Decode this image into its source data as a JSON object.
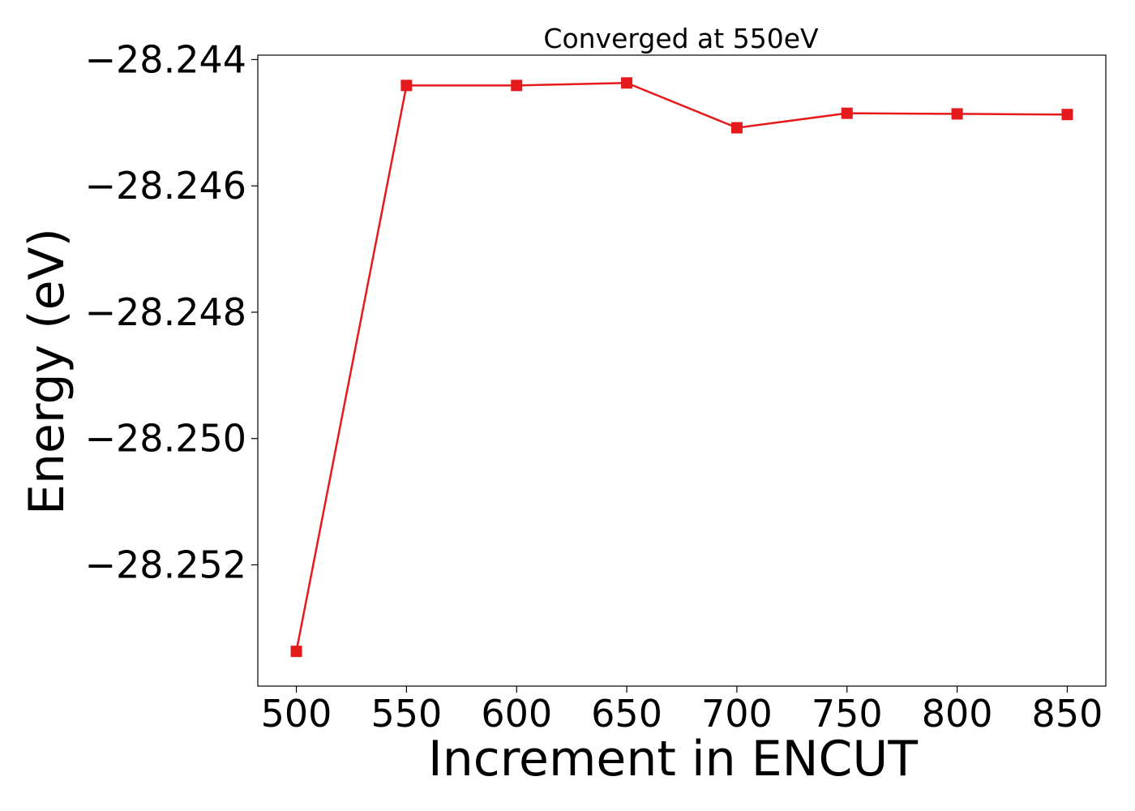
{
  "chart_data": {
    "type": "line",
    "title": "Converged at 550eV",
    "xlabel": "Increment in ENCUT",
    "ylabel": "Energy (eV)",
    "x": [
      500,
      550,
      600,
      650,
      700,
      750,
      800,
      850
    ],
    "series": [
      {
        "values": [
          -28.25337,
          -28.24441,
          -28.24441,
          -28.24437,
          -28.24508,
          -28.24485,
          -28.24486,
          -28.24487
        ],
        "color": "#e41a1c",
        "marker": "square"
      }
    ],
    "xlim": [
      482.5,
      867.5
    ],
    "ylim": [
      -28.25392,
      -28.24393
    ],
    "xticks": [
      500,
      550,
      600,
      650,
      700,
      750,
      800,
      850
    ],
    "xtick_labels": [
      "500",
      "550",
      "600",
      "650",
      "700",
      "750",
      "800",
      "850"
    ],
    "yticks": [
      -28.252,
      -28.25,
      -28.248,
      -28.246,
      -28.244
    ],
    "ytick_labels": [
      "−28.252",
      "−28.250",
      "−28.248",
      "−28.246",
      "−28.244"
    ],
    "grid": false,
    "legend": "none"
  }
}
